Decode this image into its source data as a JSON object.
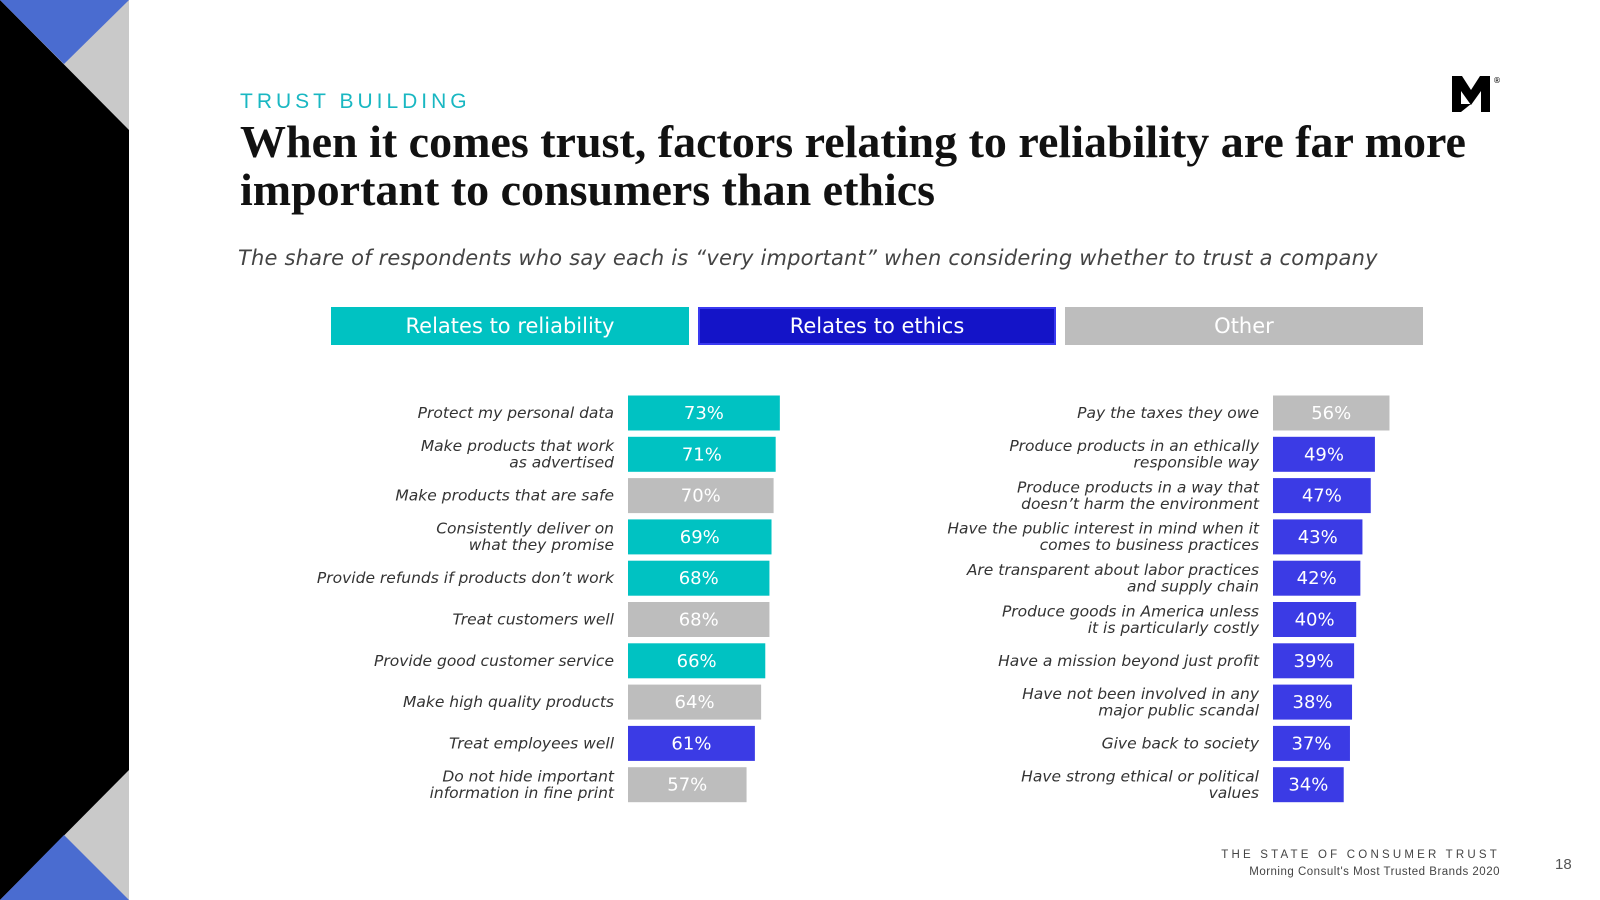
{
  "header": {
    "eyebrow": "TRUST BUILDING",
    "title": "When it comes trust, factors relating to reliability are far more important to consumers than ethics",
    "subtitle": "The share of respondents who say each is “very important” when considering whether to trust a company"
  },
  "colors": {
    "reliability": "#00C2C2",
    "ethics": "#1414C8",
    "ethics_bar": "#3B3BE5",
    "other": "#BDBDBD",
    "accent_blue": "#4A6CD0"
  },
  "legend": [
    {
      "label": "Relates to reliability",
      "category": "reliability"
    },
    {
      "label": "Relates to ethics",
      "category": "ethics"
    },
    {
      "label": "Other",
      "category": "other"
    }
  ],
  "chart_data": [
    {
      "type": "bar",
      "orientation": "horizontal",
      "unit": "%",
      "xlim": [
        0,
        100
      ],
      "categories": [
        [
          "Protect my personal data"
        ],
        [
          "Make products that work",
          "as advertised"
        ],
        [
          "Make products that are safe"
        ],
        [
          "Consistently deliver on",
          "what they promise"
        ],
        [
          "Provide refunds if products don’t work"
        ],
        [
          "Treat customers well"
        ],
        [
          "Provide good customer service"
        ],
        [
          "Make high quality products"
        ],
        [
          "Treat employees well"
        ],
        [
          "Do not hide important",
          "information in fine print"
        ]
      ],
      "values": [
        73,
        71,
        70,
        69,
        68,
        68,
        66,
        64,
        61,
        57
      ],
      "groups": [
        "reliability",
        "reliability",
        "other",
        "reliability",
        "reliability",
        "other",
        "reliability",
        "other",
        "ethics",
        "other"
      ]
    },
    {
      "type": "bar",
      "orientation": "horizontal",
      "unit": "%",
      "xlim": [
        0,
        100
      ],
      "categories": [
        [
          "Pay the taxes they owe"
        ],
        [
          "Produce products in an ethically",
          "responsible way"
        ],
        [
          "Produce products in a way that",
          "doesn’t harm the environment"
        ],
        [
          "Have the public interest in mind when it",
          "comes to business  practices"
        ],
        [
          "Are transparent about labor practices",
          "and supply chain"
        ],
        [
          "Produce goods in America unless",
          "it is particularly costly"
        ],
        [
          "Have a mission beyond just profit"
        ],
        [
          "Have not been involved in any",
          "major public scandal"
        ],
        [
          "Give back to society"
        ],
        [
          "Have strong ethical or political",
          "values"
        ]
      ],
      "values": [
        56,
        49,
        47,
        43,
        42,
        40,
        39,
        38,
        37,
        34
      ],
      "groups": [
        "other",
        "ethics",
        "ethics",
        "ethics",
        "ethics",
        "ethics",
        "ethics",
        "ethics",
        "ethics",
        "ethics"
      ]
    }
  ],
  "footer": {
    "title": "THE STATE OF CONSUMER TRUST",
    "subtitle": "Morning Consult's Most Trusted Brands 2020",
    "page_number": "18"
  }
}
